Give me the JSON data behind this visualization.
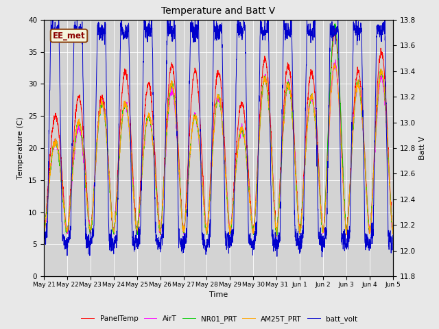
{
  "title": "Temperature and Batt V",
  "xlabel": "Time",
  "ylabel_left": "Temperature (C)",
  "ylabel_right": "Batt V",
  "annotation": "EE_met",
  "background_color": "#e8e8e8",
  "plot_bg_color": "#d3d3d3",
  "temp_ylim": [
    0,
    40
  ],
  "batt_ylim": [
    11.8,
    13.8
  ],
  "temp_yticks": [
    0,
    5,
    10,
    15,
    20,
    25,
    30,
    35,
    40
  ],
  "batt_yticks": [
    11.8,
    12.0,
    12.2,
    12.4,
    12.6,
    12.8,
    13.0,
    13.2,
    13.4,
    13.6,
    13.8
  ],
  "series_colors": {
    "PanelTemp": "#ff0000",
    "AirT": "#ff00ff",
    "NR01_PRT": "#00cc00",
    "AM25T_PRT": "#ffa500",
    "batt_volt": "#0000cc"
  },
  "legend_labels": [
    "PanelTemp",
    "AirT",
    "NR01_PRT",
    "AM25T_PRT",
    "batt_volt"
  ],
  "x_tick_labels": [
    "May 21",
    "May 22",
    "May 23",
    "May 24",
    "May 25",
    "May 26",
    "May 27",
    "May 28",
    "May 29",
    "May 30",
    "May 31",
    "Jun 1",
    "Jun 2",
    "Jun 3",
    "Jun 4",
    "Jun 5"
  ],
  "day_peaks_panel": [
    25,
    28,
    28,
    32,
    30,
    33,
    32,
    32,
    27,
    34,
    33,
    32,
    38,
    32,
    35
  ],
  "day_peaks_air": [
    21,
    23,
    27,
    27,
    25,
    29,
    25,
    28,
    23,
    31,
    30,
    28,
    33,
    30,
    31
  ],
  "day_peaks_nr01": [
    21,
    24,
    27,
    27,
    25,
    30,
    25,
    28,
    23,
    31,
    30,
    28,
    39,
    30,
    32
  ],
  "day_peaks_am25": [
    21,
    24,
    27,
    27,
    25,
    30,
    25,
    28,
    23,
    31,
    30,
    28,
    33,
    30,
    32
  ],
  "day_min_temp": 7,
  "batt_high": 13.75,
  "batt_low": 12.05,
  "n_days": 15,
  "n_pts_per_day": 144
}
